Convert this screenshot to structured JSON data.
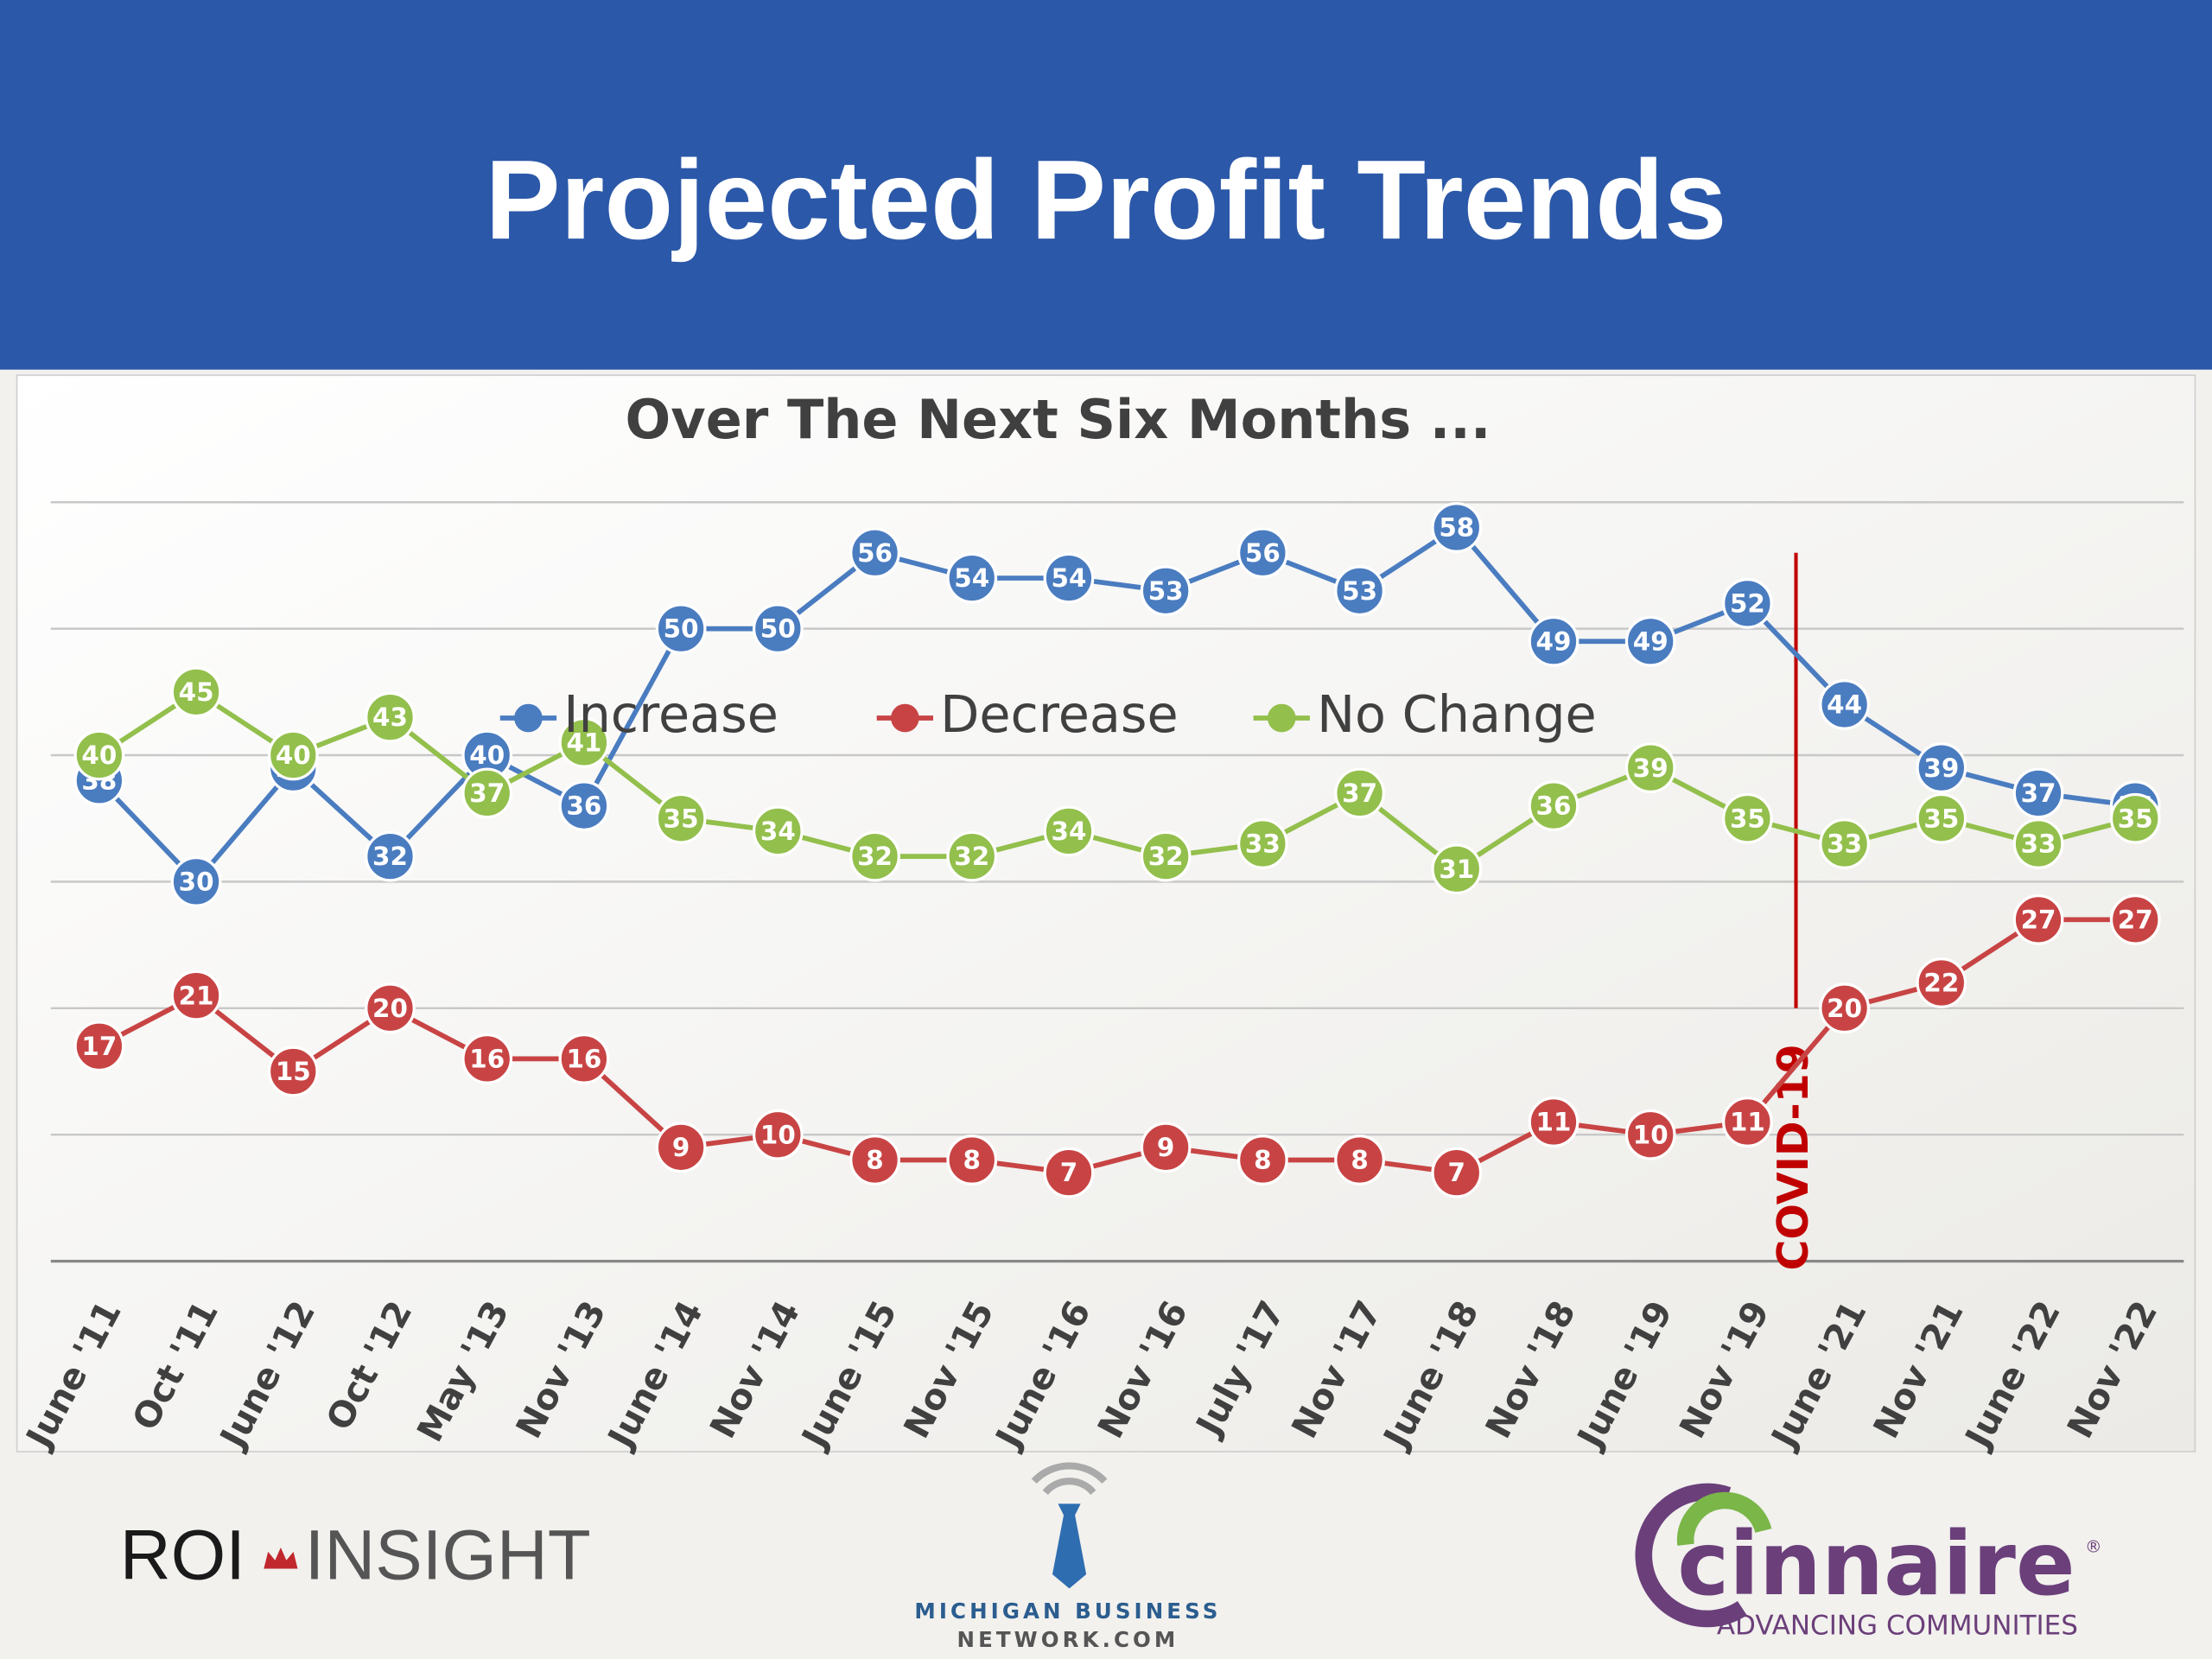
{
  "chart_data": {
    "type": "line",
    "title": "Projected Profit Trends",
    "subtitle": "Over The Next Six Months ...",
    "categories": [
      "June '11",
      "Oct '11",
      "June '12",
      "Oct '12",
      "May '13",
      "Nov '13",
      "June '14",
      "Nov '14",
      "June '15",
      "Nov '15",
      "June '16",
      "Nov '16",
      "July '17",
      "Nov '17",
      "June '18",
      "Nov '18",
      "June '19",
      "Nov '19",
      "June '21",
      "Nov '21",
      "June '22",
      "Nov '22"
    ],
    "series": [
      {
        "name": "Increase",
        "color": "#4a7cc0",
        "values": [
          38,
          30,
          39,
          32,
          40,
          36,
          50,
          50,
          56,
          54,
          54,
          53,
          56,
          53,
          58,
          49,
          49,
          52,
          44,
          39,
          37,
          36
        ]
      },
      {
        "name": "Decrease",
        "color": "#c84444",
        "values": [
          17,
          21,
          15,
          20,
          16,
          16,
          9,
          10,
          8,
          8,
          7,
          9,
          8,
          8,
          7,
          11,
          10,
          11,
          20,
          22,
          27,
          27
        ]
      },
      {
        "name": "No Change",
        "color": "#93bf4c",
        "values": [
          40,
          45,
          40,
          43,
          37,
          41,
          35,
          34,
          32,
          32,
          34,
          32,
          33,
          37,
          31,
          36,
          39,
          35,
          33,
          35,
          33,
          35
        ]
      }
    ],
    "ylim": [
      0,
      60
    ],
    "yticks": [
      0,
      10,
      20,
      30,
      40,
      50,
      60
    ],
    "grid": true,
    "legend": "top-center",
    "annotations": [
      {
        "text": "COVID-19",
        "color": "#c00000"
      }
    ]
  },
  "footer": {
    "roi": "ROI",
    "insight": "INSIGHT",
    "mbn_line1": "MICHIGAN BUSINESS",
    "mbn_line2": "NETWORK.COM",
    "cinnaire": "cinnaire",
    "registered": "®",
    "cinnaire_tagline": "ADVANCING COMMUNITIES"
  }
}
